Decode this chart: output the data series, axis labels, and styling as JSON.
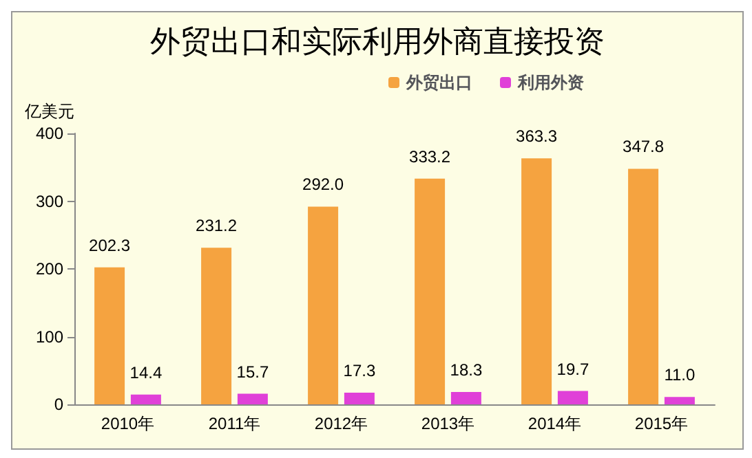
{
  "chart_data": {
    "type": "bar",
    "title": "外贸出口和实际利用外商直接投资",
    "ylabel": "亿美元",
    "categories": [
      "2010年",
      "2011年",
      "2012年",
      "2013年",
      "2014年",
      "2015年"
    ],
    "series": [
      {
        "name": "外贸出口",
        "color": "#f5a340",
        "values": [
          202.3,
          231.2,
          292.0,
          333.2,
          363.3,
          347.8
        ],
        "value_labels": [
          "202.3",
          "231.2",
          "292.0",
          "333.2",
          "363.3",
          "347.8"
        ]
      },
      {
        "name": "利用外资",
        "color": "#e040d8",
        "values": [
          14.4,
          15.7,
          17.3,
          18.3,
          19.7,
          11.0
        ],
        "value_labels": [
          "14.4",
          "15.7",
          "17.3",
          "18.3",
          "19.7",
          "11.0"
        ]
      }
    ],
    "ylim": [
      0,
      400
    ],
    "yticks": [
      0,
      100,
      200,
      300,
      400
    ],
    "legend": "top right",
    "grid": false
  }
}
